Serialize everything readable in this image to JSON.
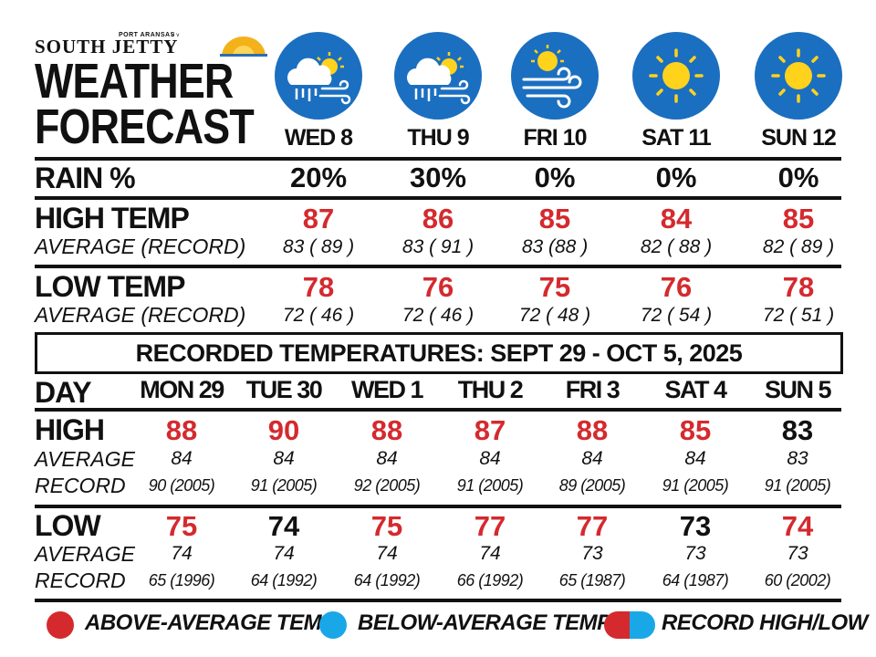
{
  "logo": {
    "small_text": "PORT ARANSAS",
    "name": "SOUTH JETTY"
  },
  "title": {
    "line1": "WEATHER",
    "line2": "FORECAST"
  },
  "forecast": {
    "days": [
      {
        "day": "WED 8",
        "icon": "rain-cloud-sun-wind-icon",
        "rain": "20%",
        "high": "87",
        "high_avg_rec": "83 ( 89 )",
        "low": "78",
        "low_avg_rec": "72 ( 46 )"
      },
      {
        "day": "THU 9",
        "icon": "rain-cloud-sun-wind-icon",
        "rain": "30%",
        "high": "86",
        "high_avg_rec": "83 ( 91 )",
        "low": "76",
        "low_avg_rec": "72 ( 46 )"
      },
      {
        "day": "FRI 10",
        "icon": "sun-wind-icon",
        "rain": "0%",
        "high": "85",
        "high_avg_rec": "83 (88 )",
        "low": "75",
        "low_avg_rec": "72 ( 48 )"
      },
      {
        "day": "SAT 11",
        "icon": "sun-icon",
        "rain": "0%",
        "high": "84",
        "high_avg_rec": "82 ( 88 )",
        "low": "76",
        "low_avg_rec": "72 ( 54 )"
      },
      {
        "day": "SUN 12",
        "icon": "sun-icon",
        "rain": "0%",
        "high": "85",
        "high_avg_rec": "82 ( 89 )",
        "low": "78",
        "low_avg_rec": "72 ( 51 )"
      }
    ],
    "labels": {
      "rain": "RAIN %",
      "high": "HIGH TEMP",
      "high_sub": "AVERAGE (RECORD)",
      "low": "LOW TEMP",
      "low_sub": "AVERAGE (RECORD)"
    }
  },
  "banner": "RECORDED TEMPERATURES: SEPT 29 - OCT 5, 2025",
  "recorded": {
    "labels": {
      "day": "DAY",
      "high": "HIGH",
      "low": "LOW",
      "average": "AVERAGE",
      "record": "RECORD"
    },
    "days": [
      {
        "day": "MON 29",
        "high": "88",
        "high_color": "red",
        "high_avg": "84",
        "high_rec": "90 (2005)",
        "low": "75",
        "low_color": "red",
        "low_avg": "74",
        "low_rec": "65 (1996)"
      },
      {
        "day": "TUE 30",
        "high": "90",
        "high_color": "red",
        "high_avg": "84",
        "high_rec": "91 (2005)",
        "low": "74",
        "low_color": "black",
        "low_avg": "74",
        "low_rec": "64 (1992)"
      },
      {
        "day": "WED 1",
        "high": "88",
        "high_color": "red",
        "high_avg": "84",
        "high_rec": "92 (2005)",
        "low": "75",
        "low_color": "red",
        "low_avg": "74",
        "low_rec": "64 (1992)"
      },
      {
        "day": "THU 2",
        "high": "87",
        "high_color": "red",
        "high_avg": "84",
        "high_rec": "91 (2005)",
        "low": "77",
        "low_color": "red",
        "low_avg": "74",
        "low_rec": "66 (1992)"
      },
      {
        "day": "FRI 3",
        "high": "88",
        "high_color": "red",
        "high_avg": "84",
        "high_rec": "89 (2005)",
        "low": "77",
        "low_color": "red",
        "low_avg": "73",
        "low_rec": "65 (1987)"
      },
      {
        "day": "SAT 4",
        "high": "85",
        "high_color": "red",
        "high_avg": "84",
        "high_rec": "91 (2005)",
        "low": "73",
        "low_color": "black",
        "low_avg": "73",
        "low_rec": "64 (1987)"
      },
      {
        "day": "SUN 5",
        "high": "83",
        "high_color": "black",
        "high_avg": "83",
        "high_rec": "91 (2005)",
        "low": "74",
        "low_color": "red",
        "low_avg": "73",
        "low_rec": "60 (2002)"
      }
    ]
  },
  "legend": {
    "above": "ABOVE-AVERAGE TEMP",
    "below": "BELOW-AVERAGE TEMP",
    "record": "RECORD HIGH/LOW"
  },
  "colors": {
    "red": "#d42a2e",
    "blue": "#1aa7e8",
    "icon_blue": "#1b6fc0",
    "sun": "#ffd21c",
    "black": "#111111"
  }
}
